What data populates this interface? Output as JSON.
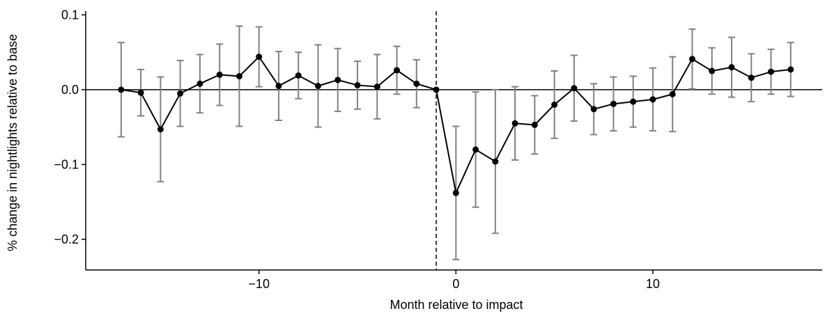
{
  "chart_data": {
    "type": "errorbar-line",
    "x_label": "Month relative to impact",
    "y_label": "% change in nightlights relative to base",
    "x": [
      -17,
      -16,
      -15,
      -14,
      -13,
      -12,
      -11,
      -10,
      -9,
      -8,
      -7,
      -6,
      -5,
      -4,
      -3,
      -2,
      -1,
      0,
      1,
      2,
      3,
      4,
      5,
      6,
      7,
      8,
      9,
      10,
      11,
      12,
      13,
      14,
      15,
      16,
      17
    ],
    "series": [
      {
        "color": "#000000",
        "error_color": "#808080",
        "values": [
          0.0,
          -0.004,
          -0.053,
          -0.005,
          0.008,
          0.02,
          0.018,
          0.044,
          0.005,
          0.019,
          0.005,
          0.013,
          0.006,
          0.004,
          0.026,
          0.008,
          0.0,
          -0.138,
          -0.08,
          -0.096,
          -0.045,
          -0.047,
          -0.02,
          0.002,
          -0.026,
          -0.019,
          -0.016,
          -0.013,
          -0.006,
          0.041,
          0.025,
          0.03,
          0.016,
          0.024,
          0.027
        ],
        "errors": [
          0.063,
          0.031,
          0.07,
          0.044,
          0.039,
          0.041,
          0.067,
          0.04,
          0.046,
          0.031,
          0.055,
          0.042,
          0.032,
          0.043,
          0.032,
          0.032,
          0,
          0.089,
          0.077,
          0.096,
          0.049,
          0.039,
          0.045,
          0.044,
          0.034,
          0.036,
          0.034,
          0.042,
          0.05,
          0.04,
          0.031,
          0.04,
          0.032,
          0.03,
          0.036
        ]
      }
    ],
    "xlim": [
      -18.8,
      18.6
    ],
    "ylim": [
      -0.241,
      0.105
    ],
    "xticks": [
      {
        "value": -10,
        "label": "−10"
      },
      {
        "value": 0,
        "label": "0"
      },
      {
        "value": 10,
        "label": "10"
      }
    ],
    "yticks": [
      {
        "value": -0.2,
        "label": "−0.2"
      },
      {
        "value": -0.1,
        "label": "−0.1"
      },
      {
        "value": 0,
        "label": "0.0"
      },
      0.1
    ],
    "vline": -1,
    "hline": 0
  }
}
